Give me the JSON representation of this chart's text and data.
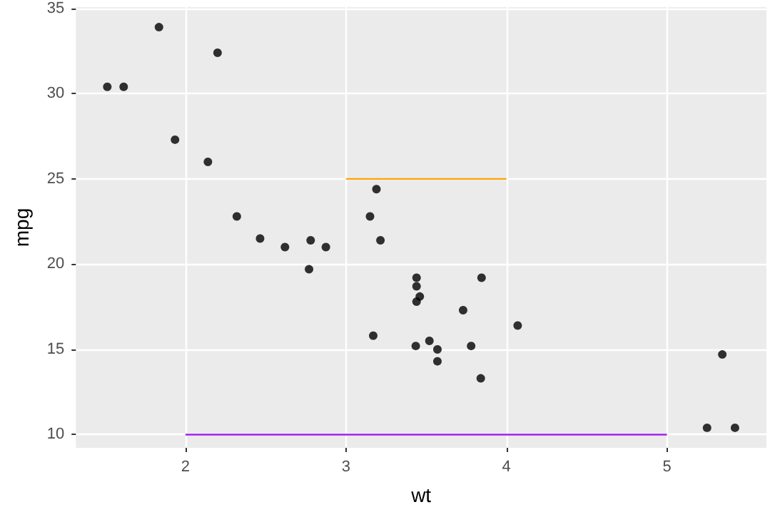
{
  "chart_data": {
    "type": "scatter",
    "xlabel": "wt",
    "ylabel": "mpg",
    "xlim": [
      1.317,
      5.62
    ],
    "ylim": [
      9.225,
      35.075
    ],
    "xticks": [
      2,
      3,
      4,
      5
    ],
    "yticks": [
      10,
      15,
      20,
      25,
      30,
      35
    ],
    "grid": true,
    "marker": "circle",
    "series": [
      {
        "color": "#000000",
        "x": [
          2.62,
          2.875,
          2.32,
          3.215,
          3.44,
          3.46,
          3.57,
          3.19,
          3.15,
          3.44,
          3.44,
          4.07,
          3.73,
          3.78,
          5.25,
          5.424,
          5.345,
          2.2,
          1.615,
          1.835,
          2.465,
          3.52,
          3.435,
          3.84,
          3.845,
          1.935,
          2.14,
          1.513,
          3.17,
          2.77,
          3.57,
          2.78
        ],
        "values": [
          21.0,
          21.0,
          22.8,
          21.4,
          18.7,
          18.1,
          14.3,
          24.4,
          22.8,
          19.2,
          17.8,
          16.4,
          17.3,
          15.2,
          10.4,
          10.4,
          14.7,
          32.4,
          30.4,
          33.9,
          21.5,
          15.5,
          15.2,
          13.3,
          19.2,
          27.3,
          26.0,
          30.4,
          15.8,
          19.7,
          15.0,
          21.4
        ]
      },
      {
        "type": "line",
        "color": "#ffa500",
        "x": [
          3,
          4
        ],
        "values": [
          25,
          25
        ],
        "marker": "none"
      },
      {
        "type": "line",
        "color": "#a020f0",
        "x": [
          2,
          5
        ],
        "values": [
          10,
          10
        ],
        "marker": "none"
      }
    ]
  }
}
